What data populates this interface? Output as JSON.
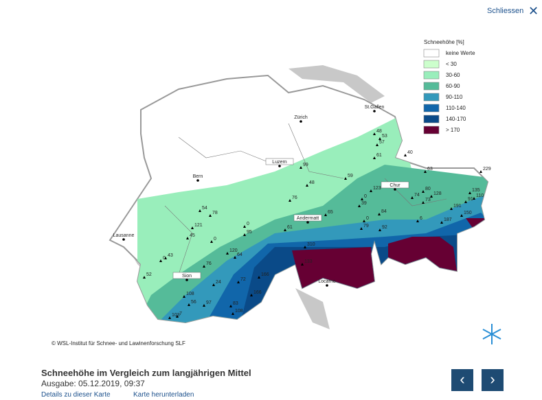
{
  "header": {
    "close": "Schliessen"
  },
  "legend": {
    "title": "Schneehöhe [%]",
    "items": [
      {
        "label": "keine Werte",
        "color": "#ffffff"
      },
      {
        "label": "< 30",
        "color": "#ccffcc"
      },
      {
        "label": "30-60",
        "color": "#99eebb"
      },
      {
        "label": "60-90",
        "color": "#55bb99"
      },
      {
        "label": "90-110",
        "color": "#3399bb"
      },
      {
        "label": "110-140",
        "color": "#1166aa"
      },
      {
        "label": "140-170",
        "color": "#0a4a88"
      },
      {
        "label": "> 170",
        "color": "#660033"
      }
    ]
  },
  "cities": [
    "St.Gallen",
    "Zürich",
    "Luzern",
    "Bern",
    "Chur",
    "Andermatt",
    "Lausanne",
    "Sion",
    "Locarno"
  ],
  "stations": [
    "48",
    "53",
    "57",
    "61",
    "40",
    "59",
    "99",
    "48",
    "123",
    "63",
    "80",
    "74",
    "128",
    "73",
    "229",
    "135",
    "110",
    "91",
    "191",
    "150",
    "187",
    "0",
    "39",
    "84",
    "76",
    "54",
    "78",
    "121",
    "45",
    "0",
    "0",
    "95",
    "61",
    "65",
    "79",
    "0",
    "92",
    "6",
    "120",
    "64",
    "43",
    "0",
    "52",
    "76",
    "72",
    "24",
    "108",
    "56",
    "97",
    "83",
    "108",
    "103",
    "7",
    "310",
    "133",
    "166",
    "166"
  ],
  "copyright": "© WSL-Institut für Schnee- und Lawinenforschung SLF",
  "footer": {
    "title": "Schneehöhe im Vergleich zum langjährigen Mittel",
    "issue": "Ausgabe: 05.12.2019, 09:37",
    "links": [
      "Details zu dieser Karte",
      "Karte herunterladen"
    ]
  }
}
